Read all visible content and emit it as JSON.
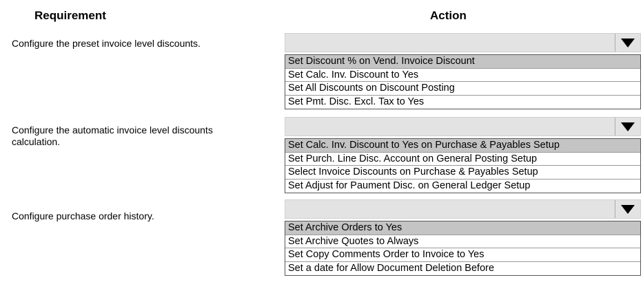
{
  "headers": {
    "requirement": "Requirement",
    "action": "Action"
  },
  "rows": [
    {
      "requirement": "Configure the preset invoice level discounts.",
      "selected_index": 0,
      "options": [
        "Set Discount % on Vend. Invoice Discount",
        "Set Calc. Inv. Discount to Yes",
        "Set All Discounts on Discount Posting",
        "Set Pmt. Disc. Excl. Tax to Yes"
      ]
    },
    {
      "requirement": "Configure the automatic invoice level discounts calculation.",
      "selected_index": 0,
      "options": [
        "Set Calc. Inv. Discount to Yes on Purchase & Payables Setup",
        "Set Purch. Line Disc. Account on General Posting Setup",
        "Select Invoice Discounts on Purchase & Payables Setup",
        "Set Adjust for Paument Disc. on General Ledger Setup"
      ]
    },
    {
      "requirement": "Configure purchase order history.",
      "selected_index": 0,
      "options": [
        "Set Archive Orders to Yes",
        "Set Archive Quotes to Always",
        "Set Copy Comments Order to Invoice to Yes",
        "Set a date for Allow Document Deletion Before"
      ]
    }
  ],
  "icons": {
    "dropdown": "triangle-down-icon"
  },
  "colors": {
    "highlight": "#c4c4c4",
    "select_bg": "#e3e3e3"
  }
}
